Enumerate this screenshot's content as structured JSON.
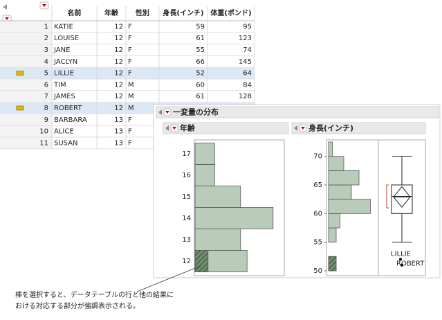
{
  "table": {
    "columns": [
      "名前",
      "年齢",
      "性別",
      "身長(インチ)",
      "体重(ポンド)"
    ],
    "rows": [
      {
        "n": 1,
        "cells": [
          "KATIE",
          12,
          "F",
          59,
          95
        ],
        "selected": false
      },
      {
        "n": 2,
        "cells": [
          "LOUISE",
          12,
          "F",
          61,
          123
        ],
        "selected": false
      },
      {
        "n": 3,
        "cells": [
          "JANE",
          12,
          "F",
          55,
          74
        ],
        "selected": false
      },
      {
        "n": 4,
        "cells": [
          "JACLYN",
          12,
          "F",
          66,
          145
        ],
        "selected": false
      },
      {
        "n": 5,
        "cells": [
          "LILLIE",
          12,
          "F",
          52,
          64
        ],
        "selected": true
      },
      {
        "n": 6,
        "cells": [
          "TIM",
          12,
          "M",
          60,
          84
        ],
        "selected": false
      },
      {
        "n": 7,
        "cells": [
          "JAMES",
          12,
          "M",
          61,
          128
        ],
        "selected": false
      },
      {
        "n": 8,
        "cells": [
          "ROBERT",
          12,
          "M"
        ],
        "selected": true
      },
      {
        "n": 9,
        "cells": [
          "BARBARA",
          13,
          "F"
        ],
        "selected": false
      },
      {
        "n": 10,
        "cells": [
          "ALICE",
          13,
          "F"
        ],
        "selected": false
      },
      {
        "n": 11,
        "cells": [
          "SUSAN",
          13,
          "F"
        ],
        "selected": false
      }
    ]
  },
  "panel": {
    "title": "一変量の分布",
    "age": {
      "title": "年齢",
      "categories": [
        12,
        13,
        14,
        15,
        16,
        17
      ],
      "counts": [
        8,
        7,
        12,
        7,
        3,
        3
      ],
      "selected": [
        2,
        0,
        0,
        0,
        0,
        0
      ],
      "color": "#b9cbb9"
    },
    "height": {
      "title": "身長(インチ)",
      "ylim": [
        50,
        72.5
      ],
      "yticks": [
        50,
        55,
        60,
        65,
        70
      ],
      "bins": [
        50,
        52.5,
        55,
        57.5,
        60,
        62.5,
        65,
        67.5,
        70,
        72.5
      ],
      "counts": [
        2,
        0,
        2,
        3,
        11,
        6,
        8,
        4,
        1
      ],
      "selected": [
        2,
        0,
        0,
        0,
        0,
        0,
        0,
        0,
        0
      ],
      "color": "#b9cbb9",
      "box": {
        "whisker_low": 55,
        "q1": 60,
        "median": 63,
        "q3": 65,
        "whisker_high": 70,
        "mean": 62.9,
        "ci": [
          61.1,
          64.7
        ],
        "shortest_half": [
          61,
          65
        ],
        "outliers": [
          {
            "label": "LILLIE",
            "value": 52
          },
          {
            "label": "ROBERT",
            "value": 51
          }
        ]
      }
    }
  },
  "annotation": [
    "棒を選択すると、データテーブルの行と他の結果に",
    "おける対応する部分が強調表示される。"
  ]
}
